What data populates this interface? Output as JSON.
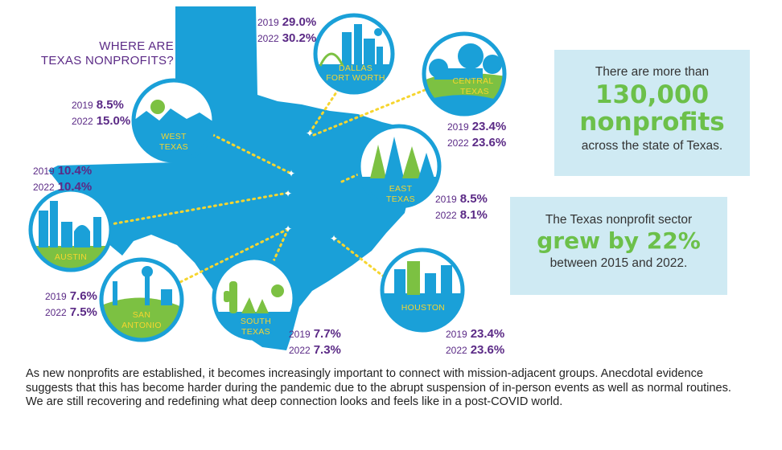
{
  "title": {
    "line1": "WHERE ARE",
    "line2": "TEXAS NONPROFITS?"
  },
  "regions": [
    {
      "id": "dallas",
      "label1": "DALLAS",
      "label2": "FORT WORTH",
      "y2019_label": "2019",
      "y2019": "29.0%",
      "y2022_label": "2022",
      "y2022": "30.2%"
    },
    {
      "id": "central",
      "label1": "CENTRAL",
      "label2": "TEXAS",
      "y2019_label": "2019",
      "y2019": "23.4%",
      "y2022_label": "2022",
      "y2022": "23.6%"
    },
    {
      "id": "west",
      "label1": "WEST",
      "label2": "TEXAS",
      "y2019_label": "2019",
      "y2019": "8.5%",
      "y2022_label": "2022",
      "y2022": "15.0%"
    },
    {
      "id": "east",
      "label1": "EAST",
      "label2": "TEXAS",
      "y2019_label": "2019",
      "y2019": "8.5%",
      "y2022_label": "2022",
      "y2022": "8.1%"
    },
    {
      "id": "austin",
      "label1": "AUSTIN",
      "label2": "",
      "y2019_label": "2019",
      "y2019": "10.4%",
      "y2022_label": "2022",
      "y2022": "10.4%"
    },
    {
      "id": "san-antonio",
      "label1": "SAN",
      "label2": "ANTONIO",
      "y2019_label": "2019",
      "y2019": "7.6%",
      "y2022_label": "2022",
      "y2022": "7.5%"
    },
    {
      "id": "south",
      "label1": "SOUTH",
      "label2": "TEXAS",
      "y2019_label": "2019",
      "y2019": "7.7%",
      "y2022_label": "2022",
      "y2022": "7.3%"
    },
    {
      "id": "houston",
      "label1": "HOUSTON",
      "label2": "",
      "y2019_label": "2019",
      "y2019": "23.4%",
      "y2022_label": "2022",
      "y2022": "23.6%"
    }
  ],
  "box1": {
    "pre": "There are more than",
    "big1": "130,000",
    "big2": "nonprofits",
    "post": "across the state of Texas."
  },
  "box2": {
    "pre": "The Texas nonprofit sector",
    "big": "grew by 22%",
    "post": "between 2015 and 2022."
  },
  "footer": "As new nonprofits are established, it becomes increasingly important to connect with mission-adjacent groups. Anecdotal evidence suggests that this has become harder during the pandemic due to the abrupt suspension of in-person events as well as normal routines. We are still recovering and redefining what deep connection looks and feels like in a post-COVID world.",
  "colors": {
    "map": "#1aa0d8",
    "badge_ring": "#1aa0d8",
    "sky": "#ffffff",
    "green": "#7cc142",
    "label": "#f6d52f",
    "purple": "#5b2a86",
    "box_bg": "#cfeaf3",
    "accent_green": "#6cc04a",
    "dots": "#f6d52f"
  }
}
